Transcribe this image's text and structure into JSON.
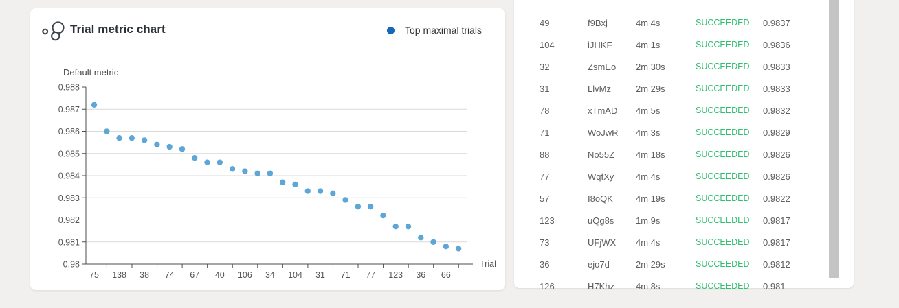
{
  "colors": {
    "page_background": "#f1f0ef",
    "card_background": "#ffffff",
    "accent_blue": "#1666ba",
    "point_blue": "#4f9ed2",
    "status_green": "#2fbf71",
    "gridline": "#d9d9d9",
    "axis": "#4d4d4d"
  },
  "chart_card": {
    "title": "Trial metric chart",
    "icon": "bubble-chart-icon",
    "legend_label": "Top maximal trials",
    "legend_color": "#1666ba"
  },
  "chart_data": {
    "type": "scatter",
    "title": "Trial metric chart",
    "xlabel": "Trial",
    "ylabel": "Default metric",
    "ylim": [
      0.98,
      0.988
    ],
    "y_ticks": [
      0.988,
      0.987,
      0.986,
      0.985,
      0.984,
      0.983,
      0.982,
      0.981,
      0.98
    ],
    "grid": true,
    "legend_position": "top-right",
    "x_tick_labels": [
      "75",
      "138",
      "38",
      "74",
      "67",
      "40",
      "106",
      "34",
      "104",
      "31",
      "71",
      "77",
      "123",
      "36",
      "66"
    ],
    "x_tick_every": 2,
    "series": [
      {
        "name": "Top maximal trials",
        "color": "#4f9ed2",
        "values": [
          0.9872,
          0.986,
          0.9857,
          0.9857,
          0.9856,
          0.9854,
          0.9853,
          0.9852,
          0.9848,
          0.9846,
          0.9846,
          0.9843,
          0.9842,
          0.9841,
          0.9841,
          0.9837,
          0.9836,
          0.9833,
          0.9833,
          0.9832,
          0.9829,
          0.9826,
          0.9826,
          0.9822,
          0.9817,
          0.9817,
          0.9812,
          0.981,
          0.9808,
          0.9807
        ]
      }
    ]
  },
  "table": {
    "status_color": "#2fbf71",
    "rows": [
      {
        "id": "49",
        "name": "f9Bxj",
        "duration": "4m 4s",
        "status": "SUCCEEDED",
        "metric": "0.9837"
      },
      {
        "id": "104",
        "name": "iJHKF",
        "duration": "4m 1s",
        "status": "SUCCEEDED",
        "metric": "0.9836"
      },
      {
        "id": "32",
        "name": "ZsmEo",
        "duration": "2m 30s",
        "status": "SUCCEEDED",
        "metric": "0.9833"
      },
      {
        "id": "31",
        "name": "LlvMz",
        "duration": "2m 29s",
        "status": "SUCCEEDED",
        "metric": "0.9833"
      },
      {
        "id": "78",
        "name": "xTmAD",
        "duration": "4m 5s",
        "status": "SUCCEEDED",
        "metric": "0.9832"
      },
      {
        "id": "71",
        "name": "WoJwR",
        "duration": "4m 3s",
        "status": "SUCCEEDED",
        "metric": "0.9829"
      },
      {
        "id": "88",
        "name": "No55Z",
        "duration": "4m 18s",
        "status": "SUCCEEDED",
        "metric": "0.9826"
      },
      {
        "id": "77",
        "name": "WqfXy",
        "duration": "4m 4s",
        "status": "SUCCEEDED",
        "metric": "0.9826"
      },
      {
        "id": "57",
        "name": "I8oQK",
        "duration": "4m 19s",
        "status": "SUCCEEDED",
        "metric": "0.9822"
      },
      {
        "id": "123",
        "name": "uQg8s",
        "duration": "1m 9s",
        "status": "SUCCEEDED",
        "metric": "0.9817"
      },
      {
        "id": "73",
        "name": "UFjWX",
        "duration": "4m 4s",
        "status": "SUCCEEDED",
        "metric": "0.9817"
      },
      {
        "id": "36",
        "name": "ejo7d",
        "duration": "2m 29s",
        "status": "SUCCEEDED",
        "metric": "0.9812"
      },
      {
        "id": "126",
        "name": "H7Khz",
        "duration": "4m 8s",
        "status": "SUCCEEDED",
        "metric": "0.981"
      }
    ]
  }
}
